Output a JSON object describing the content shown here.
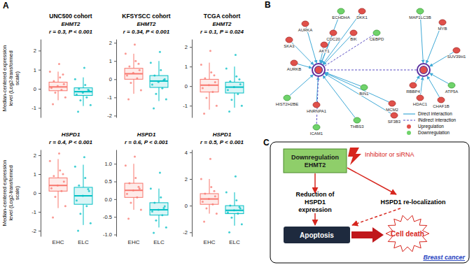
{
  "panel_labels": [
    "A",
    "B",
    "C"
  ],
  "chart_data": [
    {
      "type": "box",
      "title": "UNC500 cohort",
      "subtitle": "EHMT2",
      "annotation": "r = 0.3, P < 0.001",
      "y_label": "Median-centered expression level (Log2-transformed scale)",
      "categories": [
        null,
        null
      ],
      "colors": [
        "#f8766d",
        "#00bfc4"
      ],
      "ylim": [
        -1.5,
        2.6
      ],
      "yticks": [
        -1,
        0,
        1,
        2
      ],
      "boxes": [
        {
          "q1": -0.1,
          "median": 0.1,
          "q3": 0.35,
          "whisker_low": -0.6,
          "whisker_high": 0.9,
          "points": [
            0.9,
            0.6,
            0.4,
            0.25,
            0.15,
            0.05,
            -0.05,
            -0.2,
            -0.45,
            1.3,
            -0.8,
            0.75
          ]
        },
        {
          "q1": -0.35,
          "median": -0.15,
          "q3": 0.05,
          "whisker_low": -0.9,
          "whisker_high": 0.6,
          "points": [
            0.5,
            0.2,
            0.0,
            -0.1,
            -0.2,
            -0.3,
            -0.45,
            -0.6,
            -0.85,
            1.1,
            -1.2,
            -0.05
          ]
        }
      ]
    },
    {
      "type": "box",
      "title": "KFSYSCC cohort",
      "subtitle": "EHMT2",
      "annotation": "r = 0.34, P < 0.001",
      "categories": [
        null,
        null
      ],
      "colors": [
        "#f8766d",
        "#00bfc4"
      ],
      "ylim": [
        -2.1,
        2.2
      ],
      "yticks": [
        -2,
        -1,
        0,
        1,
        2
      ],
      "boxes": [
        {
          "q1": 0,
          "median": 0.3,
          "q3": 0.6,
          "whisker_low": -0.8,
          "whisker_high": 1.4,
          "points": [
            1.4,
            1.0,
            0.7,
            0.5,
            0.35,
            0.2,
            0.05,
            -0.2,
            -0.6,
            1.9,
            -1.1,
            0.85
          ]
        },
        {
          "q1": -0.45,
          "median": -0.1,
          "q3": 0.2,
          "whisker_low": -1.2,
          "whisker_high": 1.0,
          "points": [
            0.9,
            0.5,
            0.2,
            0.0,
            -0.15,
            -0.3,
            -0.5,
            -0.8,
            -1.1,
            1.5,
            -1.6,
            -0.05
          ]
        }
      ]
    },
    {
      "type": "box",
      "title": "TCGA cohort",
      "subtitle": "EHMT2",
      "annotation": "r = 0.1, P = 0.024",
      "categories": [
        null,
        null
      ],
      "colors": [
        "#f8766d",
        "#00bfc4"
      ],
      "ylim": [
        -1.6,
        2.4
      ],
      "yticks": [
        -1,
        0,
        1,
        2
      ],
      "boxes": [
        {
          "q1": -0.3,
          "median": 0.05,
          "q3": 0.35,
          "whisker_low": -1.2,
          "whisker_high": 1.2,
          "points": [
            1.1,
            0.7,
            0.4,
            0.2,
            0.05,
            -0.1,
            -0.3,
            -0.6,
            -1.0,
            1.8,
            -1.4,
            0.55
          ]
        },
        {
          "q1": -0.35,
          "median": -0.05,
          "q3": 0.2,
          "whisker_low": -1.1,
          "whisker_high": 1.0,
          "points": [
            0.9,
            0.5,
            0.25,
            0.1,
            -0.05,
            -0.2,
            -0.4,
            -0.7,
            -1.0,
            1.6,
            -1.3,
            0.35
          ]
        }
      ]
    },
    {
      "type": "box",
      "subtitle": "HSPD1",
      "annotation": "r = 0.4, P < 0.001",
      "y_label": "Median-centered expression level (Log2-transformed scale)",
      "categories": [
        "EHC",
        "ELC"
      ],
      "colors": [
        "#f8766d",
        "#00bfc4"
      ],
      "ylim": [
        -2.3,
        2.3
      ],
      "yticks": [
        -2,
        -1,
        0,
        1,
        2
      ],
      "boxes": [
        {
          "q1": 0.1,
          "median": 0.4,
          "q3": 0.8,
          "whisker_low": -0.8,
          "whisker_high": 1.8,
          "points": [
            1.7,
            1.2,
            0.9,
            0.6,
            0.4,
            0.25,
            0.1,
            -0.2,
            -0.7,
            2.1,
            -1.3,
            1.0
          ]
        },
        {
          "q1": -0.6,
          "median": -0.15,
          "q3": 0.3,
          "whisker_low": -1.7,
          "whisker_high": 1.5,
          "points": [
            1.4,
            0.8,
            0.4,
            0.1,
            -0.15,
            -0.4,
            -0.7,
            -1.1,
            -1.6,
            1.9,
            -2.0,
            0.2
          ]
        }
      ]
    },
    {
      "type": "box",
      "subtitle": "HSPD1",
      "annotation": "r = 0.6, P < 0.001",
      "categories": [
        "EHC",
        "ELC"
      ],
      "colors": [
        "#f8766d",
        "#00bfc4"
      ],
      "ylim": [
        -1.05,
        1.4
      ],
      "yticks": [
        {
          "value": -1,
          "label": "-1.0"
        },
        {
          "value": -0.5,
          "label": "-0.5"
        },
        {
          "value": 0,
          "label": "0.0"
        },
        {
          "value": 0.5,
          "label": "0.5"
        },
        {
          "value": 1,
          "label": "1.0"
        }
      ],
      "boxes": [
        {
          "q1": 0.05,
          "median": 0.25,
          "q3": 0.45,
          "whisker_low": -0.3,
          "whisker_high": 1.0,
          "points": [
            0.95,
            0.6,
            0.45,
            0.3,
            0.25,
            0.15,
            0.05,
            -0.1,
            -0.3,
            1.2,
            -0.55,
            0.35
          ]
        },
        {
          "q1": -0.45,
          "median": -0.3,
          "q3": -0.1,
          "whisker_low": -0.8,
          "whisker_high": 0.3,
          "points": [
            0.3,
            0.05,
            -0.1,
            -0.2,
            -0.3,
            -0.35,
            -0.45,
            -0.6,
            -0.8,
            0.75,
            -0.95,
            -0.25
          ]
        }
      ]
    },
    {
      "type": "box",
      "subtitle": "HSPD1",
      "annotation": "r = 0.5, P < 0.001",
      "categories": [
        "EHC",
        "ELC"
      ],
      "colors": [
        "#f8766d",
        "#00bfc4"
      ],
      "ylim": [
        -2.3,
        4.2
      ],
      "yticks": [
        -2,
        0,
        2,
        4
      ],
      "boxes": [
        {
          "q1": 0.1,
          "median": 0.5,
          "q3": 0.9,
          "whisker_low": -0.6,
          "whisker_high": 2.0,
          "points": [
            2.0,
            1.4,
            0.9,
            0.7,
            0.5,
            0.3,
            0.1,
            -0.2,
            -0.6,
            3.5,
            -1.2,
            1.1
          ]
        },
        {
          "q1": -0.6,
          "median": -0.35,
          "q3": 0,
          "whisker_low": -1.5,
          "whisker_high": 1.0,
          "points": [
            1.0,
            0.4,
            0.0,
            -0.2,
            -0.35,
            -0.5,
            -0.6,
            -0.9,
            -1.4,
            2.2,
            -2.0,
            -0.1
          ]
        }
      ]
    }
  ],
  "network": {
    "nodes": [
      {
        "regulation": "up"
      },
      {
        "regulation": "up"
      },
      {
        "label": "ECHDHA",
        "regulation": "down"
      },
      {
        "label": "DKK1",
        "regulation": "up"
      },
      {
        "label": "MAP1LC3B",
        "regulation": "down"
      },
      {
        "label": "MYB",
        "regulation": "up"
      },
      {
        "label": "AURKA",
        "regulation": "up"
      },
      {
        "label": "CDC20",
        "regulation": "up"
      },
      {
        "label": "BIK",
        "regulation": "up"
      },
      {
        "label": "CEBPD",
        "regulation": "down"
      },
      {
        "label": "SKA3",
        "regulation": "up"
      },
      {
        "label": "AKT1",
        "regulation": "up"
      },
      {
        "label": "SUV39H1",
        "regulation": "up"
      },
      {
        "label": "AURKB",
        "regulation": "up"
      },
      {
        "label": "RBBP4",
        "regulation": "up"
      },
      {
        "label": "ATP5A",
        "regulation": "down"
      },
      {
        "label": "HDAC1",
        "regulation": "up"
      },
      {
        "label": "CHAF1B",
        "regulation": "up"
      },
      {
        "label": "HIST2H2BE",
        "regulation": "down"
      },
      {
        "label": "HNRNPA1",
        "regulation": "up"
      },
      {
        "label": "BIN1",
        "regulation": "down"
      },
      {
        "label": "MCM2",
        "regulation": "up"
      },
      {
        "label": "SF3B3",
        "regulation": "up"
      },
      {
        "label": "ICAM1",
        "regulation": "down"
      },
      {
        "label": "THBS3",
        "regulation": "down"
      }
    ],
    "edges": [
      [
        2,
        0,
        "direct"
      ],
      [
        3,
        0,
        "direct"
      ],
      [
        6,
        0,
        "direct"
      ],
      [
        7,
        0,
        "direct"
      ],
      [
        8,
        0,
        "direct"
      ],
      [
        9,
        0,
        "indirect"
      ],
      [
        10,
        0,
        "direct"
      ],
      [
        11,
        0,
        "direct"
      ],
      [
        13,
        0,
        "direct"
      ],
      [
        18,
        0,
        "direct"
      ],
      [
        19,
        0,
        "direct"
      ],
      [
        20,
        0,
        "direct"
      ],
      [
        21,
        0,
        "direct"
      ],
      [
        22,
        0,
        "direct"
      ],
      [
        23,
        0,
        "indirect"
      ],
      [
        24,
        0,
        "direct"
      ],
      [
        4,
        1,
        "direct"
      ],
      [
        5,
        1,
        "direct"
      ],
      [
        12,
        1,
        "direct"
      ],
      [
        14,
        1,
        "direct"
      ],
      [
        15,
        1,
        "direct"
      ],
      [
        16,
        1,
        "direct"
      ],
      [
        17,
        1,
        "direct"
      ],
      [
        1,
        0,
        "indirect"
      ]
    ],
    "legend": {
      "direct": "Direct interaction",
      "indirect": "INdirect interaction",
      "up": "Upregulation",
      "down": "Downregulation"
    }
  },
  "flow": {
    "start": "Downregulation EHMT2",
    "trigger": "Inhibitor or siRNA",
    "left": "Reduction of HSPD1 expression",
    "right": "HSPD1 re-localization",
    "outcome": "Apoptosis",
    "end": "Cell death",
    "footer": "Breast cancer"
  }
}
